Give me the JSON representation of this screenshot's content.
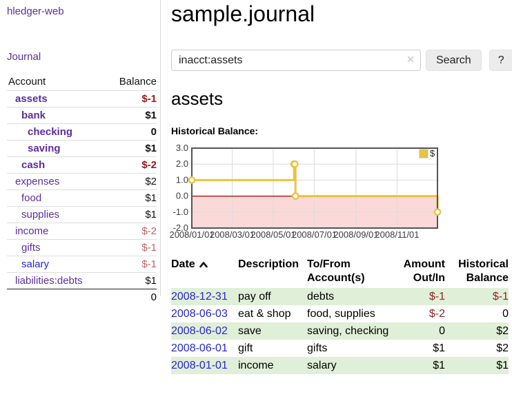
{
  "sidebar": {
    "app_title": "hledger-web",
    "nav": {
      "journal_label": "Journal"
    },
    "accounts_header": {
      "account": "Account",
      "balance": "Balance"
    },
    "accounts": [
      {
        "name": "assets",
        "depth": 1,
        "bold": true,
        "link": "purple",
        "balance": "$-1",
        "balance_style": "bal-bold-red"
      },
      {
        "name": "bank",
        "depth": 2,
        "bold": true,
        "link": "purple",
        "balance": "$1",
        "balance_style": "bal-bold-black"
      },
      {
        "name": "checking",
        "depth": 3,
        "bold": true,
        "link": "purple",
        "balance": "0",
        "balance_style": "bal-bold-black"
      },
      {
        "name": "saving",
        "depth": 3,
        "bold": true,
        "link": "purple",
        "balance": "$1",
        "balance_style": "bal-bold-black"
      },
      {
        "name": "cash",
        "depth": 2,
        "bold": true,
        "link": "purple",
        "balance": "$-2",
        "balance_style": "bal-bold-red"
      },
      {
        "name": "expenses",
        "depth": 1,
        "bold": false,
        "link": "purple",
        "balance": "$2",
        "balance_style": "bal-black"
      },
      {
        "name": "food",
        "depth": 2,
        "bold": false,
        "link": "purple",
        "balance": "$1",
        "balance_style": "bal-black"
      },
      {
        "name": "supplies",
        "depth": 2,
        "bold": false,
        "link": "purple",
        "balance": "$1",
        "balance_style": "bal-black"
      },
      {
        "name": "income",
        "depth": 1,
        "bold": false,
        "link": "purple",
        "balance": "$-2",
        "balance_style": "bal-rose"
      },
      {
        "name": "gifts",
        "depth": 2,
        "bold": false,
        "link": "purple",
        "balance": "$-1",
        "balance_style": "bal-rose"
      },
      {
        "name": "salary",
        "depth": 2,
        "bold": false,
        "link": "blue",
        "balance": "$-1",
        "balance_style": "bal-rose"
      },
      {
        "name": "liabilities:debts",
        "depth": 1,
        "bold": false,
        "link": "purple",
        "balance": "$1",
        "balance_style": "bal-black"
      }
    ],
    "total": "0"
  },
  "header": {
    "title": "sample.journal"
  },
  "search": {
    "query": "inacct:assets",
    "placeholder": "",
    "clear_icon": "✕",
    "search_label": "Search",
    "help_label": "?"
  },
  "account_page": {
    "heading": "assets",
    "chart_label": "Historical Balance:"
  },
  "chart_data": {
    "type": "line",
    "steps": true,
    "title": "Historical Balance",
    "xrange": [
      "2008-01-01",
      "2008-12-31"
    ],
    "ylim": [
      -2,
      3
    ],
    "yticks": [
      3.0,
      2.0,
      1.0,
      0.0,
      -1.0,
      -2.0
    ],
    "xticks": [
      {
        "date": "2008-01-01",
        "label": "2008/01/01"
      },
      {
        "date": "2008-03-01",
        "label": "2008/03/01"
      },
      {
        "date": "2008-05-01",
        "label": "2008/05/01"
      },
      {
        "date": "2008-07-01",
        "label": "2008/07/01"
      },
      {
        "date": "2008-09-01",
        "label": "2008/09/01"
      },
      {
        "date": "2008-11-01",
        "label": "2008/11/01"
      }
    ],
    "series": [
      {
        "name": "$",
        "color": "#edc240",
        "points": [
          [
            "2008-01-01",
            1
          ],
          [
            "2008-06-01",
            2
          ],
          [
            "2008-06-02",
            2
          ],
          [
            "2008-06-03",
            0
          ],
          [
            "2008-12-31",
            -1
          ]
        ]
      }
    ],
    "negative_region": {
      "from": 0,
      "to": -2,
      "fill": "#fbd9d9",
      "zero_line_color": "#a40000"
    },
    "legend_position": "top-right",
    "grid": true
  },
  "transactions": {
    "columns": {
      "date": "Date",
      "description": "Description",
      "tofrom_line1": "To/From",
      "tofrom_line2": "Account(s)",
      "amount_line1": "Amount",
      "amount_line2": "Out/In",
      "balance_line1": "Historical",
      "balance_line2": "Balance"
    },
    "rows": [
      {
        "date": "2008-12-31",
        "description": "pay off",
        "accounts": "debts",
        "amount": "$-1",
        "amount_neg": true,
        "balance": "$-1",
        "balance_neg": true,
        "shade": true
      },
      {
        "date": "2008-06-03",
        "description": "eat & shop",
        "accounts": "food, supplies",
        "amount": "$-2",
        "amount_neg": true,
        "balance": "0",
        "balance_neg": false,
        "shade": false
      },
      {
        "date": "2008-06-02",
        "description": "save",
        "accounts": "saving, checking",
        "amount": "0",
        "amount_neg": false,
        "balance": "$2",
        "balance_neg": false,
        "shade": true
      },
      {
        "date": "2008-06-01",
        "description": "gift",
        "accounts": "gifts",
        "amount": "$1",
        "amount_neg": false,
        "balance": "$2",
        "balance_neg": false,
        "shade": false
      },
      {
        "date": "2008-01-01",
        "description": "income",
        "accounts": "salary",
        "amount": "$1",
        "amount_neg": false,
        "balance": "$1",
        "balance_neg": false,
        "shade": true
      }
    ]
  },
  "colors": {
    "link_purple": "#5b2d9e",
    "link_blue": "#2626cf",
    "negative_bold_red": "#9b1717",
    "negative_rose": "#bf616a",
    "table_negative_red": "#962323",
    "row_shade_green": "#e0efd8",
    "series_yellow": "#edc240",
    "chart_negative_fill": "#fbd9d9",
    "chart_zero_line": "#a40000",
    "chart_border": "#545454"
  }
}
